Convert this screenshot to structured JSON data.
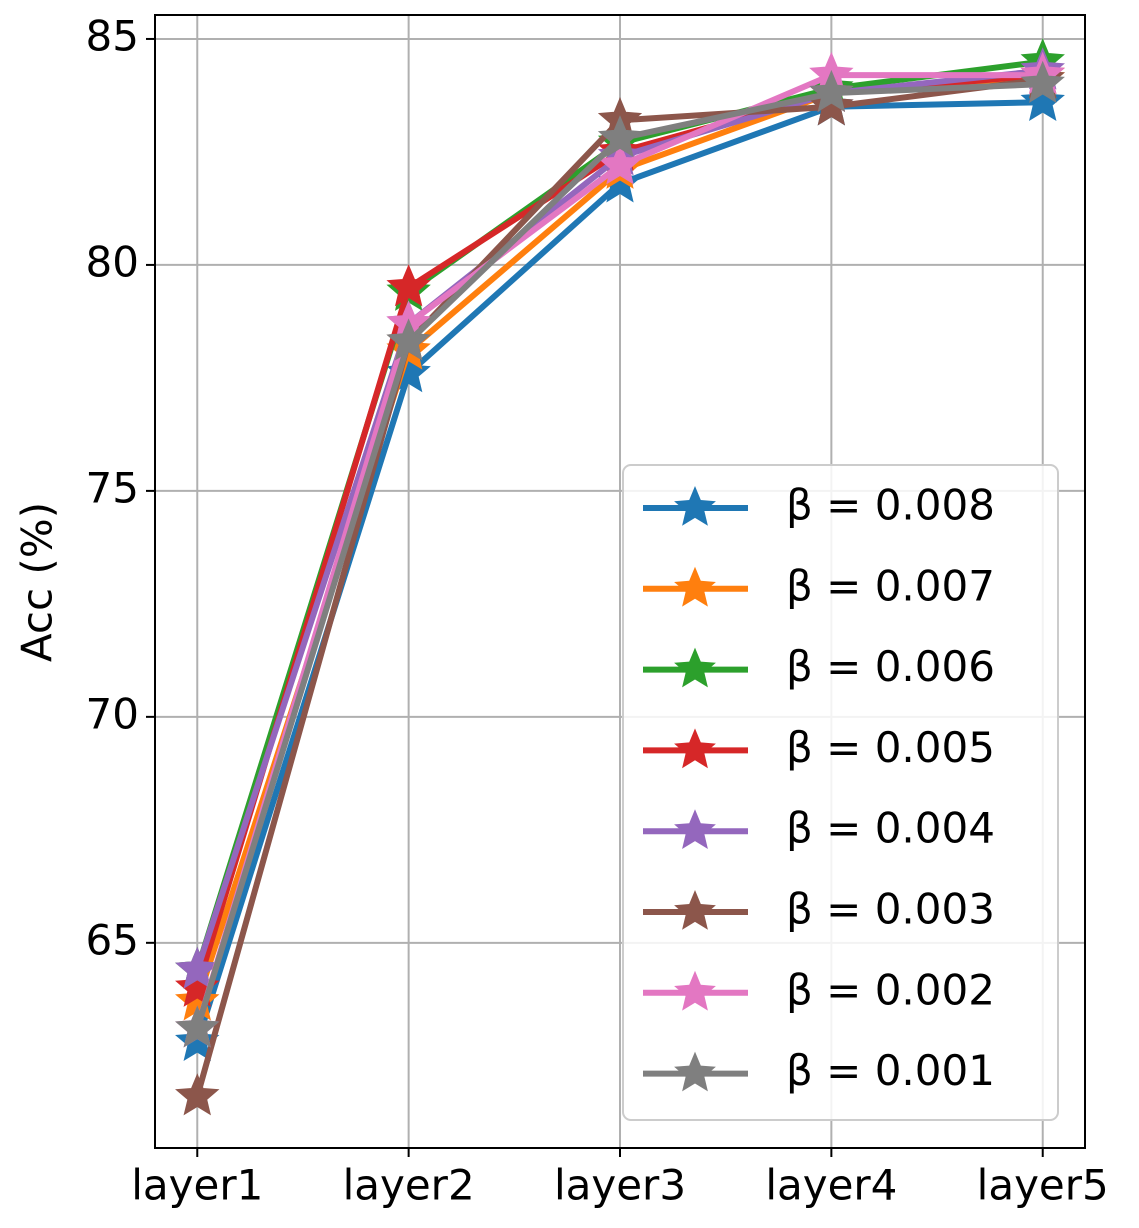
{
  "chart_data": {
    "type": "line",
    "y_label": "Acc (%)",
    "categories": [
      "layer1",
      "layer2",
      "layer3",
      "layer4",
      "layer5"
    ],
    "series": [
      {
        "name": "β = 0.008",
        "color": "#1f77b4",
        "values": [
          62.8,
          77.6,
          81.8,
          83.5,
          83.6
        ]
      },
      {
        "name": "β = 0.007",
        "color": "#ff7f0e",
        "values": [
          63.7,
          78.1,
          82.1,
          83.8,
          84.1
        ]
      },
      {
        "name": "β = 0.006",
        "color": "#2ca02c",
        "values": [
          64.4,
          79.4,
          82.7,
          83.9,
          84.5
        ]
      },
      {
        "name": "β = 0.005",
        "color": "#d62728",
        "values": [
          64.0,
          79.5,
          82.5,
          83.8,
          84.2
        ]
      },
      {
        "name": "β = 0.004",
        "color": "#9467bd",
        "values": [
          64.4,
          78.7,
          82.4,
          83.8,
          84.3
        ]
      },
      {
        "name": "β = 0.003",
        "color": "#8c564b",
        "values": [
          61.6,
          78.3,
          83.2,
          83.5,
          84.1
        ]
      },
      {
        "name": "β = 0.002",
        "color": "#e377c2",
        "values": [
          63.1,
          78.7,
          82.2,
          84.2,
          84.2
        ]
      },
      {
        "name": "β = 0.001",
        "color": "#7f7f7f",
        "values": [
          63.1,
          78.3,
          82.8,
          83.8,
          84.0
        ]
      }
    ],
    "ylim": [
      60.46,
      85.53
    ],
    "yticks": [
      65,
      70,
      75,
      80,
      85
    ],
    "grid": true,
    "legend": "lower right"
  }
}
